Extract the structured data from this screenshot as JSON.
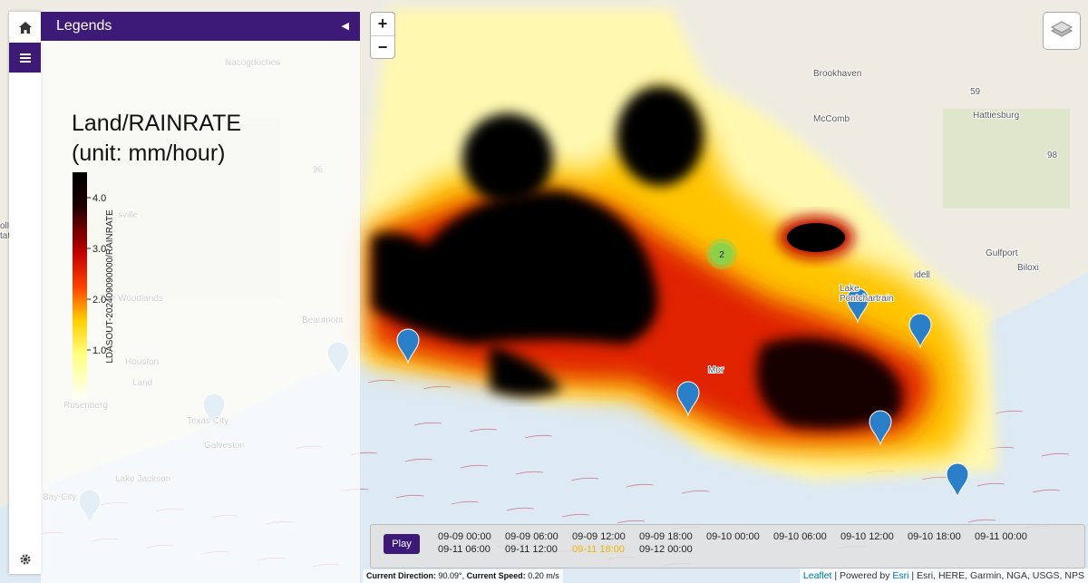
{
  "map": {
    "places": [
      "Nacogdoches",
      "Brookhaven",
      "McComb",
      "Hattiesburg",
      "Gulfport",
      "Biloxi",
      "idell",
      "Beaumont",
      "Houston",
      "Rosenberg",
      "Texas City",
      "Galveston",
      "Lake Jackson",
      "Bay City",
      "The Woodlands",
      "sville",
      "ollege",
      "tation",
      "Lake",
      "Pontchartrain",
      "Mor",
      "96",
      "98",
      "59",
      "Land"
    ],
    "cluster": "2"
  },
  "legend": {
    "header": "Legends",
    "title": "Land/RAINRATE",
    "unit": "(unit: mm/hour)",
    "colorbar_label": "LDASOUT-202409090000/RAINRATE",
    "ticks": [
      {
        "value": 4,
        "label": "4.0"
      },
      {
        "value": 3,
        "label": "3.0"
      },
      {
        "value": 2,
        "label": "2.0"
      },
      {
        "value": 1,
        "label": "1.0"
      }
    ],
    "range": [
      0,
      4.5
    ]
  },
  "timeline": {
    "button": "Play",
    "times": [
      "09-09 00:00",
      "09-09 06:00",
      "09-09 12:00",
      "09-09 18:00",
      "09-10 00:00",
      "09-10 06:00",
      "09-10 12:00",
      "09-10 18:00",
      "09-11 00:00",
      "09-11 06:00",
      "09-11 12:00",
      "09-11 18:00",
      "09-12 00:00"
    ],
    "selected_index": 11
  },
  "status": {
    "direction_label": "Current Direction:",
    "direction": "90.09°,",
    "speed_label": "Current Speed:",
    "speed": "0.20 m/s"
  },
  "attribution": {
    "leaflet": "Leaflet",
    "powered": "| Powered by",
    "esri": "Esri",
    "sources": "| Esri, HERE, Garmin, NGA, USGS, NPS"
  },
  "zoom": {
    "in": "+",
    "out": "−"
  }
}
